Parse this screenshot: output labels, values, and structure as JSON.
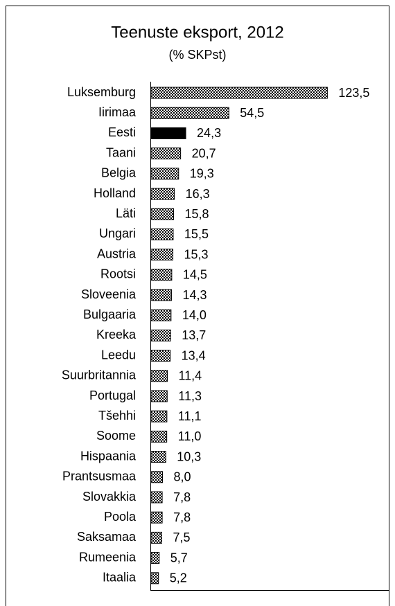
{
  "chart_data": {
    "type": "hbar",
    "title": "Teenuste eksport, 2012",
    "subtitle": "(% SKPst)",
    "categories": [
      "Luksemburg",
      "Iirimaa",
      "Eesti",
      "Taani",
      "Belgia",
      "Holland",
      "Läti",
      "Ungari",
      "Austria",
      "Rootsi",
      "Sloveenia",
      "Bulgaaria",
      "Kreeka",
      "Leedu",
      "Suurbritannia",
      "Portugal",
      "Tšehhi",
      "Soome",
      "Hispaania",
      "Prantsusmaa",
      "Slovakkia",
      "Poola",
      "Saksamaa",
      "Rumeenia",
      "Itaalia"
    ],
    "values": [
      123.5,
      54.5,
      24.3,
      20.7,
      19.3,
      16.3,
      15.8,
      15.5,
      15.3,
      14.5,
      14.3,
      14.0,
      13.7,
      13.4,
      11.4,
      11.3,
      11.1,
      11.0,
      10.3,
      8.0,
      7.8,
      7.8,
      7.5,
      5.7,
      5.2
    ],
    "value_labels": [
      "123,5",
      "54,5",
      "24,3",
      "20,7",
      "19,3",
      "16,3",
      "15,8",
      "15,5",
      "15,3",
      "14,5",
      "14,3",
      "14,0",
      "13,7",
      "13,4",
      "11,4",
      "11,3",
      "11,1",
      "11,0",
      "10,3",
      "8,0",
      "7,8",
      "7,8",
      "7,5",
      "5,7",
      "5,2"
    ],
    "xlim": [
      0,
      167
    ],
    "pattern": "checkerboard",
    "highlight": [
      2
    ],
    "highlight_color": "#000000"
  }
}
